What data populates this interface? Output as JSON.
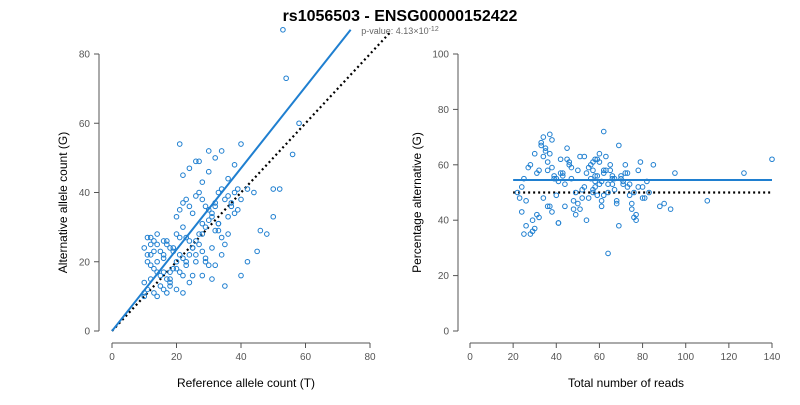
{
  "title": "rs1056503 - ENSG00000152422",
  "subtitle": {
    "prefix": "p-value: 4.13×10",
    "exponent": "-12"
  },
  "colors": {
    "points": "#1f7fd0",
    "fit_line": "#1f7fd0",
    "reference_line": "#000000"
  },
  "chart_data": [
    {
      "type": "scatter",
      "xlabel": "Reference allele count (T)",
      "ylabel": "Alternative allele count (G)",
      "xlim": [
        0,
        80
      ],
      "ylim": [
        0,
        80
      ],
      "xticks": [
        0,
        20,
        40,
        60,
        80
      ],
      "yticks": [
        0,
        20,
        40,
        60,
        80
      ],
      "fit_line": [
        [
          0,
          0
        ],
        [
          74,
          87
        ]
      ],
      "reference_line": [
        [
          0,
          0
        ],
        [
          86,
          86
        ]
      ],
      "x": [
        10,
        11,
        10,
        12,
        13,
        14,
        15,
        11,
        12,
        13,
        16,
        17,
        18,
        14,
        15,
        16,
        12,
        13,
        10,
        11,
        12,
        14,
        15,
        17,
        18,
        19,
        20,
        21,
        22,
        23,
        16,
        17,
        18,
        19,
        20,
        21,
        22,
        24,
        25,
        26,
        27,
        28,
        29,
        30,
        31,
        32,
        33,
        20,
        21,
        22,
        23,
        24,
        25,
        26,
        27,
        28,
        29,
        30,
        31,
        32,
        33,
        34,
        35,
        36,
        37,
        38,
        39,
        40,
        20,
        21,
        22,
        23,
        24,
        25,
        26,
        27,
        28,
        29,
        30,
        31,
        32,
        33,
        34,
        35,
        36,
        37,
        38,
        22,
        24,
        26,
        28,
        30,
        32,
        34,
        36,
        38,
        40,
        42,
        44,
        46,
        48,
        50,
        52,
        56,
        58,
        53,
        54,
        40,
        42,
        45,
        50,
        21,
        27,
        30,
        14,
        16,
        18,
        24,
        25,
        29,
        31,
        35,
        10,
        11,
        12,
        13,
        14,
        18,
        20,
        22,
        26,
        28,
        32,
        34,
        16,
        17,
        19,
        23,
        28,
        33,
        36,
        39
      ],
      "y": [
        11,
        12,
        14,
        15,
        11,
        10,
        13,
        20,
        22,
        18,
        12,
        11,
        14,
        25,
        23,
        21,
        27,
        26,
        24,
        22,
        19,
        17,
        16,
        15,
        13,
        18,
        20,
        22,
        21,
        19,
        26,
        25,
        24,
        23,
        28,
        27,
        30,
        26,
        24,
        22,
        25,
        28,
        30,
        32,
        34,
        36,
        31,
        33,
        35,
        37,
        38,
        36,
        34,
        39,
        40,
        38,
        36,
        35,
        33,
        37,
        40,
        41,
        38,
        39,
        37,
        40,
        41,
        38,
        18,
        17,
        16,
        20,
        22,
        24,
        26,
        28,
        23,
        21,
        19,
        24,
        29,
        31,
        27,
        25,
        33,
        36,
        34,
        45,
        47,
        49,
        43,
        46,
        50,
        52,
        44,
        48,
        54,
        41,
        40,
        29,
        28,
        41,
        41,
        51,
        60,
        87,
        73,
        16,
        20,
        23,
        33,
        54,
        49,
        52,
        28,
        22,
        17,
        14,
        16,
        20,
        15,
        13,
        10,
        27,
        25,
        23,
        20,
        15,
        12,
        11,
        20,
        16,
        19,
        22,
        17,
        26,
        24,
        27,
        31,
        29,
        28,
        35
      ],
      "title": ""
    },
    {
      "type": "scatter",
      "xlabel": "Total number of reads",
      "ylabel": "Percentage alternative (G)",
      "xlim": [
        0,
        140
      ],
      "ylim": [
        0,
        100
      ],
      "xticks": [
        0,
        20,
        40,
        60,
        80,
        100,
        120,
        140
      ],
      "yticks": [
        0,
        20,
        40,
        60,
        80,
        100
      ],
      "fit_line": [
        [
          20,
          54.5
        ],
        [
          140,
          54.5
        ]
      ],
      "reference_line": [
        [
          20,
          50
        ],
        [
          140,
          50
        ]
      ],
      "x": [
        22,
        23,
        24,
        25,
        26,
        27,
        28,
        29,
        30,
        31,
        32,
        33,
        34,
        35,
        36,
        37,
        38,
        39,
        40,
        41,
        42,
        43,
        44,
        45,
        46,
        47,
        48,
        49,
        50,
        51,
        52,
        53,
        54,
        55,
        56,
        57,
        58,
        59,
        60,
        61,
        62,
        63,
        64,
        65,
        66,
        67,
        68,
        69,
        70,
        71,
        72,
        73,
        74,
        75,
        76,
        77,
        78,
        79,
        80,
        81,
        82,
        83,
        85,
        88,
        90,
        93,
        95,
        110,
        127,
        140,
        33,
        34,
        35,
        36,
        37,
        38,
        40,
        42,
        44,
        46,
        48,
        50,
        52,
        55,
        57,
        58,
        59,
        60,
        61,
        62,
        63,
        64,
        65,
        66,
        67,
        68,
        70,
        72,
        74,
        75,
        76,
        78,
        80,
        24,
        26,
        28,
        30,
        32,
        34,
        36,
        38,
        39,
        41,
        43,
        45,
        47,
        49,
        51,
        53,
        56,
        57,
        58,
        59,
        60,
        61,
        62,
        64,
        66,
        71,
        73,
        77,
        25,
        29,
        31,
        37,
        41,
        54,
        57,
        58,
        62,
        69
      ],
      "y": [
        50,
        48,
        52,
        55,
        47,
        59,
        60,
        40,
        64,
        42,
        58,
        68,
        70,
        65,
        61,
        71,
        69,
        56,
        49,
        54,
        62,
        57,
        45,
        66,
        60,
        55,
        47,
        50,
        58,
        63,
        48,
        52,
        57,
        59,
        55,
        61,
        54,
        62,
        64,
        47,
        49,
        58,
        53,
        60,
        56,
        51,
        46,
        67,
        55,
        53,
        57,
        52,
        49,
        44,
        50,
        42,
        58,
        61,
        52,
        48,
        54,
        50,
        60,
        45,
        46,
        44,
        57,
        47,
        57,
        62,
        67,
        63,
        66,
        58,
        64,
        59,
        55,
        57,
        53,
        61,
        44,
        46,
        51,
        48,
        58,
        52,
        56,
        61,
        54,
        57,
        63,
        50,
        58,
        53,
        55,
        47,
        56,
        60,
        53,
        46,
        41,
        52,
        48,
        43,
        38,
        35,
        37,
        41,
        48,
        45,
        43,
        55,
        39,
        56,
        62,
        59,
        42,
        44,
        63,
        60,
        51,
        56,
        49,
        53,
        45,
        58,
        28,
        55,
        54,
        57,
        40,
        35,
        36,
        57,
        45,
        39,
        40,
        50,
        62,
        72,
        38
      ],
      "title": ""
    }
  ]
}
